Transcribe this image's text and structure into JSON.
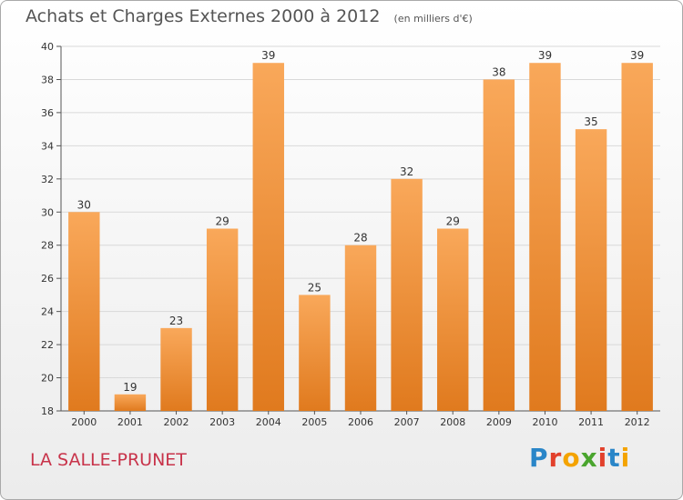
{
  "title": "Achats et Charges Externes 2000 à 2012",
  "unit_note": "(en milliers d'€)",
  "location_name": "LA SALLE-PRUNET",
  "logo": {
    "text": "Proxiti",
    "letter_colors": [
      "#2a86c8",
      "#e2412c",
      "#f4a300",
      "#4aa52e",
      "#e2412c",
      "#2a86c8",
      "#f4a300"
    ]
  },
  "colors": {
    "bar_top": "#f9a85a",
    "bar_bottom": "#e07a1e",
    "title": "#555555",
    "location": "#c8334a"
  },
  "chart_data": {
    "type": "bar",
    "categories": [
      "2000",
      "2001",
      "2002",
      "2003",
      "2004",
      "2005",
      "2006",
      "2007",
      "2008",
      "2009",
      "2010",
      "2011",
      "2012"
    ],
    "values": [
      30,
      19,
      23,
      29,
      39,
      25,
      28,
      32,
      29,
      38,
      39,
      35,
      39
    ],
    "data_labels": [
      "30",
      "19",
      "23",
      "29",
      "39",
      "25",
      "28",
      "32",
      "29",
      "38",
      "39",
      "35",
      "39"
    ],
    "yticks": [
      "18",
      "20",
      "22",
      "24",
      "26",
      "28",
      "30",
      "32",
      "34",
      "36",
      "38",
      "40"
    ],
    "ylim": [
      18,
      40
    ],
    "grid": true,
    "legend": "none"
  }
}
